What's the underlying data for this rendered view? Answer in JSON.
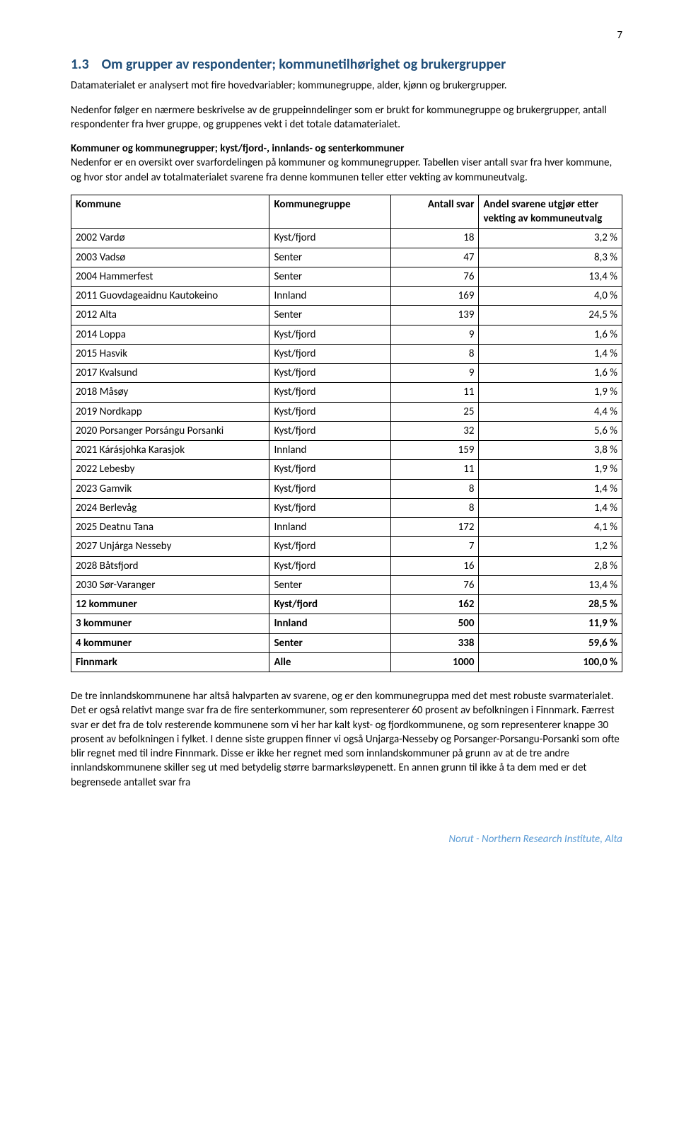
{
  "page_number": "7",
  "heading": {
    "number": "1.3",
    "title": "Om grupper av respondenter; kommunetilhørighet og brukergrupper"
  },
  "para1": "Datamaterialet er analysert mot fire hovedvariabler; kommunegruppe, alder, kjønn og brukergrupper.",
  "para2": "Nedenfor følger en nærmere beskrivelse av de gruppeinndelinger som er brukt for kommunegruppe og brukergrupper, antall respondenter fra hver gruppe, og gruppenes vekt i det totale datamaterialet.",
  "subhead": "Kommuner og kommunegrupper; kyst/fjord-, innlands- og senterkommuner",
  "para3": "Nedenfor er en oversikt over svarfordelingen på kommuner og kommunegrupper. Tabellen viser antall svar fra hver kommune, og hvor stor andel av totalmaterialet svarene fra denne kommunen teller etter vekting av kommuneutvalg.",
  "table": {
    "columns": [
      "Kommune",
      "Kommunegruppe",
      "Antall svar",
      "Andel svarene utgjør etter vekting av kommuneutvalg"
    ],
    "col_widths": [
      "36%",
      "22%",
      "16%",
      "26%"
    ],
    "rows": [
      {
        "c": [
          "2002 Vardø",
          "Kyst/fjord",
          "18",
          "3,2 %"
        ],
        "bold": false
      },
      {
        "c": [
          "2003 Vadsø",
          "Senter",
          "47",
          "8,3 %"
        ],
        "bold": false
      },
      {
        "c": [
          "2004 Hammerfest",
          "Senter",
          "76",
          "13,4 %"
        ],
        "bold": false
      },
      {
        "c": [
          "2011 Guovdageaidnu Kautokeino",
          "Innland",
          "169",
          "4,0 %"
        ],
        "bold": false
      },
      {
        "c": [
          "2012 Alta",
          "Senter",
          "139",
          "24,5 %"
        ],
        "bold": false
      },
      {
        "c": [
          "2014 Loppa",
          "Kyst/fjord",
          "9",
          "1,6 %"
        ],
        "bold": false
      },
      {
        "c": [
          "2015 Hasvik",
          "Kyst/fjord",
          "8",
          "1,4 %"
        ],
        "bold": false
      },
      {
        "c": [
          "2017 Kvalsund",
          "Kyst/fjord",
          "9",
          "1,6 %"
        ],
        "bold": false
      },
      {
        "c": [
          "2018 Måsøy",
          "Kyst/fjord",
          "11",
          "1,9 %"
        ],
        "bold": false
      },
      {
        "c": [
          "2019 Nordkapp",
          "Kyst/fjord",
          "25",
          "4,4 %"
        ],
        "bold": false
      },
      {
        "c": [
          "2020 Porsanger Porsángu Porsanki",
          "Kyst/fjord",
          "32",
          "5,6 %"
        ],
        "bold": false
      },
      {
        "c": [
          "2021 Kárásjohka Karasjok",
          "Innland",
          "159",
          "3,8 %"
        ],
        "bold": false
      },
      {
        "c": [
          "2022 Lebesby",
          "Kyst/fjord",
          "11",
          "1,9 %"
        ],
        "bold": false
      },
      {
        "c": [
          "2023 Gamvik",
          "Kyst/fjord",
          "8",
          "1,4 %"
        ],
        "bold": false
      },
      {
        "c": [
          "2024 Berlevåg",
          "Kyst/fjord",
          "8",
          "1,4 %"
        ],
        "bold": false
      },
      {
        "c": [
          "2025 Deatnu Tana",
          "Innland",
          "172",
          "4,1 %"
        ],
        "bold": false
      },
      {
        "c": [
          "2027 Unjárga Nesseby",
          "Kyst/fjord",
          "7",
          "1,2 %"
        ],
        "bold": false
      },
      {
        "c": [
          "2028 Båtsfjord",
          "Kyst/fjord",
          "16",
          "2,8 %"
        ],
        "bold": false
      },
      {
        "c": [
          "2030 Sør-Varanger",
          "Senter",
          "76",
          "13,4 %"
        ],
        "bold": false
      },
      {
        "c": [
          "12 kommuner",
          "Kyst/fjord",
          "162",
          "28,5 %"
        ],
        "bold": true
      },
      {
        "c": [
          "3 kommuner",
          "Innland",
          "500",
          "11,9 %"
        ],
        "bold": true
      },
      {
        "c": [
          "4 kommuner",
          "Senter",
          "338",
          "59,6 %"
        ],
        "bold": true
      },
      {
        "c": [
          "Finnmark",
          "Alle",
          "1000",
          "100,0 %"
        ],
        "bold": true
      }
    ]
  },
  "para4": "De tre innlandskommunene har altså halvparten av svarene, og er den kommunegruppa med det mest robuste svarmaterialet. Det er også relativt mange svar fra de fire senterkommuner, som representerer 60 prosent av befolkningen i Finnmark. Færrest svar er det fra de tolv resterende kommunene som vi her har kalt kyst- og fjordkommunene, og som representerer knappe 30 prosent av befolkningen i fylket. I denne siste gruppen finner vi også Unjarga-Nesseby og Porsanger-Porsangu-Porsanki som ofte blir regnet med til indre Finnmark. Disse er ikke her regnet med som innlandskommuner på grunn av at de tre andre innlandskommunene skiller seg ut med betydelig større barmarksløypenett. En annen grunn til ikke å ta dem med er det begrensede antallet svar fra",
  "footer": "Norut - Northern Research Institute, Alta",
  "colors": {
    "heading": "#1f4e79",
    "footer": "#5b9bd5",
    "border": "#000000",
    "text": "#000000",
    "background": "#ffffff"
  }
}
